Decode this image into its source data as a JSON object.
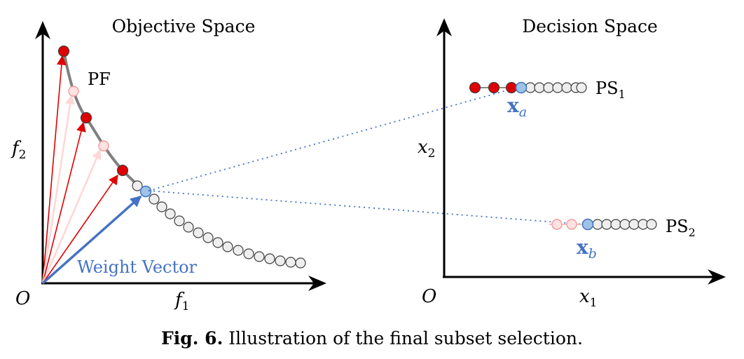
{
  "objective_space": {
    "title": "Objective Space",
    "origin_label": "O",
    "x_label_base": "f",
    "x_label_sub": "1",
    "y_label_base": "f",
    "y_label_sub": "2",
    "pf_label": "PF",
    "weight_vector_label": "Weight Vector"
  },
  "decision_space": {
    "title": "Decision Space",
    "origin_label": "O",
    "x_label_base": "x",
    "x_label_sub": "1",
    "y_label_base": "x",
    "y_label_sub": "2",
    "ps1_base": "PS",
    "ps1_sub": "1",
    "ps2_base": "PS",
    "ps2_sub": "2",
    "xa_base": "x",
    "xa_sub": "a",
    "xb_base": "x",
    "xb_sub": "b"
  },
  "caption": {
    "prefix": "Fig. 6.",
    "text": "Illustration of the final subset selection."
  },
  "colors": {
    "selected": "#e00000",
    "faded": "#ffd0d0",
    "chosen": "#9dc3e6",
    "blue_accent": "#4472c4",
    "unselected": "#eeeeee",
    "curve": "#808080"
  }
}
